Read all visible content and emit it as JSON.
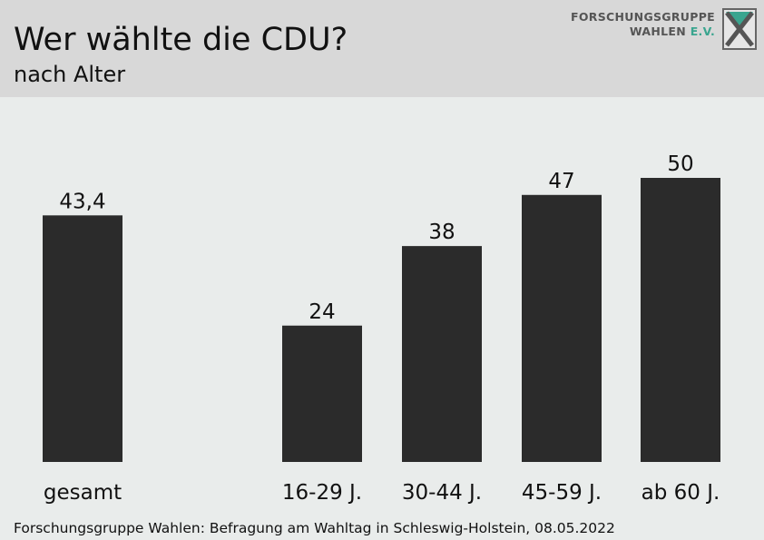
{
  "header": {
    "title": "Wer wählte die CDU?",
    "subtitle": "nach Alter"
  },
  "logo": {
    "line1": "FORSCHUNGSGRUPPE",
    "line2_main": "WAHLEN",
    "line2_accent": "E.V.",
    "icon": "x-logo-icon",
    "accent_color": "#3aa58f"
  },
  "footer": {
    "source": "Forschungsgruppe Wahlen: Befragung am Wahltag in Schleswig-Holstein, 08.05.2022"
  },
  "chart_data": {
    "type": "bar",
    "categories": [
      "gesamt",
      "16-29 J.",
      "30-44 J.",
      "45-59 J.",
      "ab 60 J."
    ],
    "values": [
      43.4,
      24,
      38,
      47,
      50
    ],
    "value_labels": [
      "43,4",
      "24",
      "38",
      "47",
      "50"
    ],
    "title": "Wer wählte die CDU?",
    "subtitle": "nach Alter",
    "xlabel": "",
    "ylabel": "",
    "ylim": [
      0,
      50
    ],
    "grid": false,
    "legend": "none",
    "bar_color": "#2b2b2b"
  }
}
